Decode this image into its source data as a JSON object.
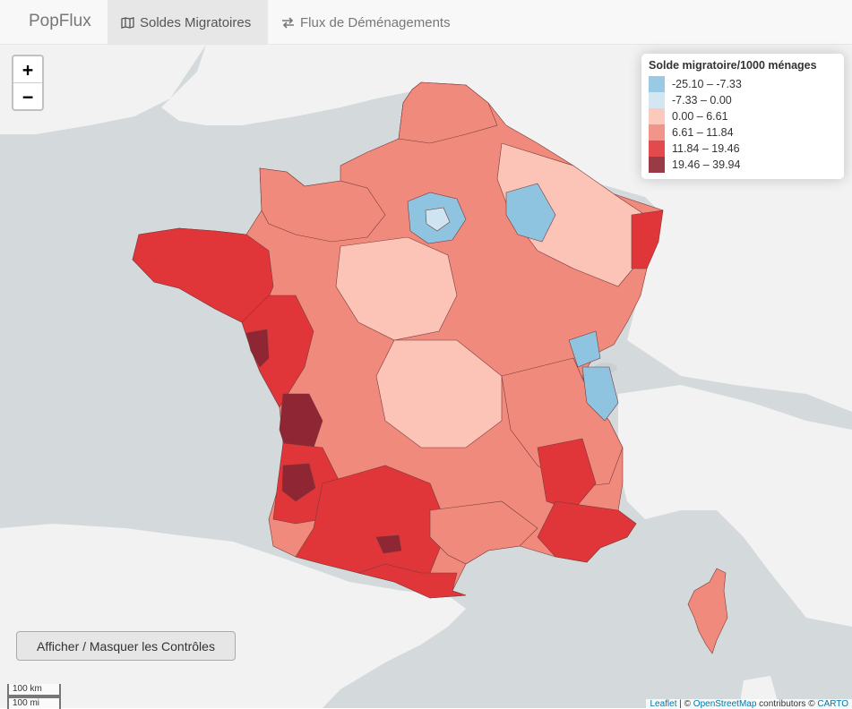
{
  "navbar": {
    "brand": "PopFlux",
    "tabs": [
      {
        "label": "Soldes Migratoires",
        "icon": "map-icon",
        "active": true
      },
      {
        "label": "Flux de Déménagements",
        "icon": "exchange-icon",
        "active": false
      }
    ]
  },
  "map": {
    "zoom_in": "+",
    "zoom_out": "−",
    "legend": {
      "title": "Solde migratoire/1000 ménages",
      "items": [
        {
          "label": "-25.10 – -7.33",
          "color": "#8fc4e0"
        },
        {
          "label": "-7.33 – 0.00",
          "color": "#cfe3f0"
        },
        {
          "label": "0.00 – 6.61",
          "color": "#fbc4b6"
        },
        {
          "label": "6.61 – 11.84",
          "color": "#f08a7d"
        },
        {
          "label": "11.84 – 19.46",
          "color": "#e0363a"
        },
        {
          "label": "19.46 – 39.94",
          "color": "#8e2633"
        }
      ]
    },
    "controls_button": "Afficher / Masquer les Contrôles",
    "scale": {
      "km": "100 km",
      "mi": "100 mi"
    },
    "attribution": {
      "leaflet": "Leaflet",
      "sep": " | © ",
      "osm": "OpenStreetMap",
      "contrib": " contributors © ",
      "carto": "CARTO"
    }
  },
  "colors": {
    "sea": "#d4dadc",
    "land": "#f2f2f2",
    "navbar": "#f8f8f8"
  }
}
